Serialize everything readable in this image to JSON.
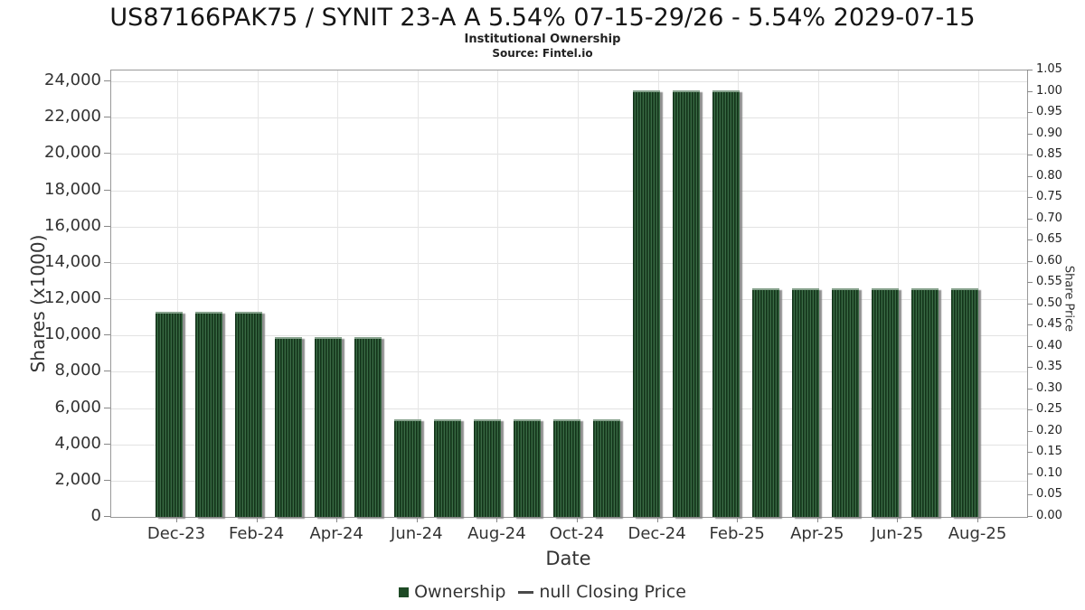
{
  "chart_data": {
    "type": "bar",
    "title": "US87166PAK75 / SYNIT 23-A A 5.54% 07-15-29/26 - 5.54% 2029-07-15",
    "subtitle": "Institutional Ownership",
    "source": "Source: Fintel.io",
    "xlabel": "Date",
    "ylabel": "Shares (x1000)",
    "y2label": "Share Price",
    "categories": [
      "Dec-23",
      "Jan-24",
      "Feb-24",
      "Mar-24",
      "Apr-24",
      "May-24",
      "Jun-24",
      "Jul-24",
      "Aug-24",
      "Sep-24",
      "Oct-24",
      "Nov-24",
      "Dec-24",
      "Jan-25",
      "Feb-25",
      "Mar-25",
      "Apr-25",
      "May-25",
      "Jun-25",
      "Jul-25",
      "Aug-25"
    ],
    "series": [
      {
        "name": "Ownership",
        "type": "bar",
        "values": [
          11320,
          11320,
          11320,
          9920,
          9920,
          9920,
          5400,
          5400,
          5400,
          5400,
          5400,
          5400,
          23480,
          23480,
          23480,
          12620,
          12620,
          12620,
          12620,
          12620,
          12620
        ]
      },
      {
        "name": "null Closing Price",
        "type": "line",
        "values": []
      }
    ],
    "ylim": [
      0,
      24000
    ],
    "y2lim": [
      0,
      1.05
    ],
    "yticks": [
      0,
      2000,
      4000,
      6000,
      8000,
      10000,
      12000,
      14000,
      16000,
      18000,
      20000,
      22000,
      24000
    ],
    "y2ticks": [
      0.0,
      0.05,
      0.1,
      0.15,
      0.2,
      0.25,
      0.3,
      0.35,
      0.4,
      0.45,
      0.5,
      0.55,
      0.6,
      0.65,
      0.7,
      0.75,
      0.8,
      0.85,
      0.9,
      0.95,
      1.0,
      1.05
    ],
    "xticks": [
      "Dec-23",
      "Feb-24",
      "Apr-24",
      "Jun-24",
      "Aug-24",
      "Oct-24",
      "Dec-24",
      "Feb-25",
      "Apr-25",
      "Jun-25",
      "Aug-25"
    ],
    "grid": true,
    "legend_position": "bottom"
  },
  "colors": {
    "bar_fill": "#1f4a27",
    "bar_stripe_dark": "#14331b",
    "bar_stripe_light": "#3b6a46",
    "bar_shadow": "#9a9a9a",
    "legend_square": "#1e4a25",
    "grid": "#e2e2e2",
    "axis": "#888888",
    "text": "#333333"
  }
}
